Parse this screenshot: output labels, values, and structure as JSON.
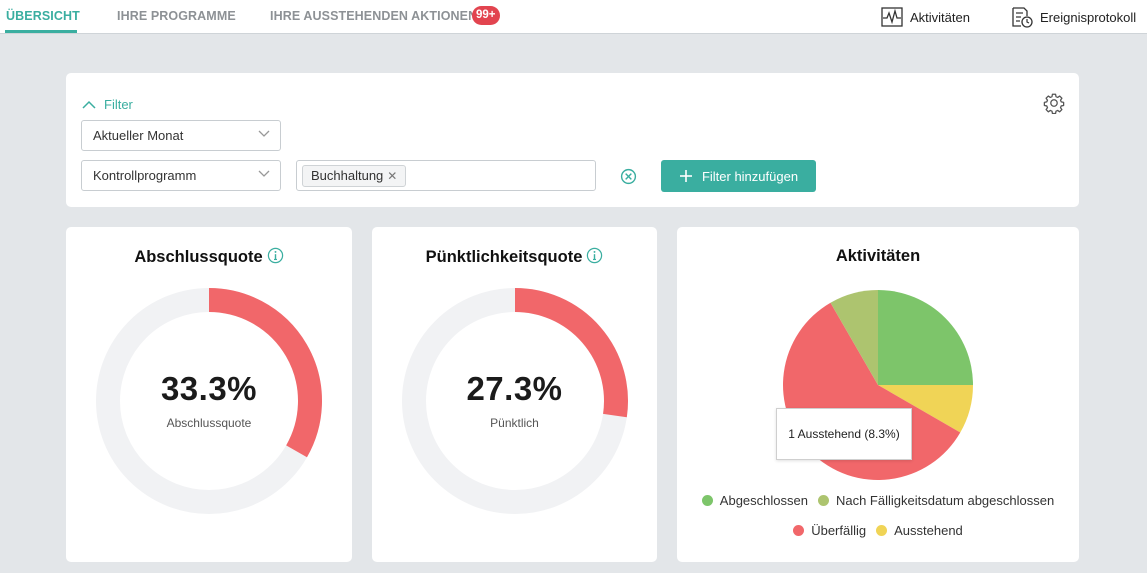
{
  "nav": {
    "tabs": [
      {
        "label": "ÜBERSICHT",
        "active": true
      },
      {
        "label": "IHRE PROGRAMME",
        "active": false
      },
      {
        "label": "IHRE AUSSTEHENDEN AKTIONEN",
        "active": false
      }
    ],
    "pending_badge": "99+",
    "actions": [
      {
        "label": "Aktivitäten",
        "icon": "activity-chart-icon"
      },
      {
        "label": "Ereignisprotokoll",
        "icon": "event-log-icon"
      }
    ]
  },
  "filter": {
    "toggle_label": "Filter",
    "period_select": "Aktueller Monat",
    "type_select": "Kontrollprogramm",
    "tags": [
      "Buchhaltung"
    ],
    "add_button_label": "Filter hinzufügen"
  },
  "completion": {
    "title": "Abschlussquote",
    "value_text": "33.3%",
    "fraction": 0.333,
    "label": "Abschlussquote"
  },
  "punctuality": {
    "title": "Pünktlichkeitsquote",
    "value_text": "27.3%",
    "fraction": 0.273,
    "label": "Pünktlich"
  },
  "colors": {
    "accent": "#3aaea0",
    "gauge_fill": "#f1676a",
    "gauge_track": "#f1f2f4",
    "badge": "#e2444f"
  },
  "activities": {
    "title": "Aktivitäten",
    "tooltip": "1 Ausstehend (8.3%)",
    "legend_rows": [
      [
        {
          "label": "Abgeschlossen",
          "color": "#7dc56a"
        },
        {
          "label": "Nach Fälligkeitsdatum abgeschlossen",
          "color": "#adc46f"
        }
      ],
      [
        {
          "label": "Überfällig",
          "color": "#f1676a"
        },
        {
          "label": "Ausstehend",
          "color": "#f0d456"
        }
      ]
    ]
  },
  "chart_data": {
    "type": "pie",
    "title": "Aktivitäten",
    "slices": [
      {
        "label": "Abgeschlossen",
        "value": 3,
        "percent": 25.0,
        "color": "#7dc56a"
      },
      {
        "label": "Ausstehend",
        "value": 1,
        "percent": 8.3,
        "color": "#f0d456"
      },
      {
        "label": "Überfällig",
        "value": 7,
        "percent": 58.3,
        "color": "#f1676a"
      },
      {
        "label": "Nach Fälligkeitsdatum abgeschlossen",
        "value": 1,
        "percent": 8.3,
        "color": "#adc46f"
      }
    ],
    "legend": "bottom"
  }
}
